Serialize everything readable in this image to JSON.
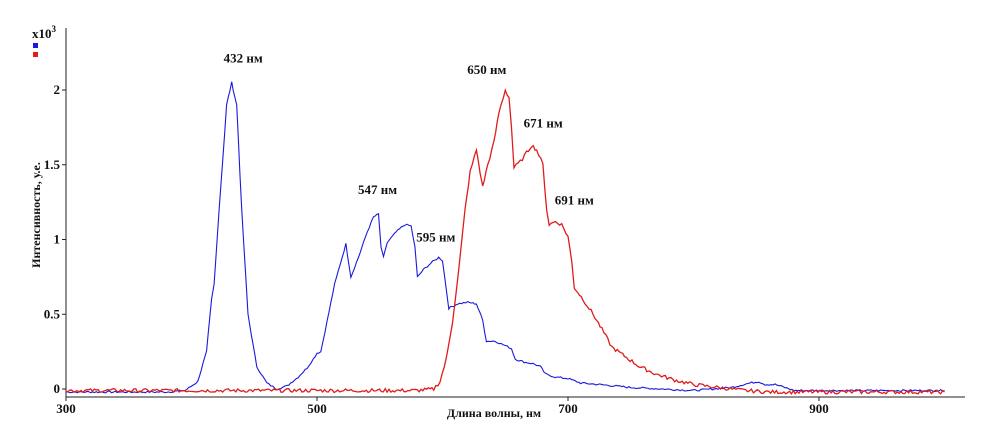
{
  "chart_data": {
    "type": "line",
    "title": "",
    "xlabel": "Длина волны, нм",
    "ylabel": "Интенсивность, у.е.",
    "y_multiplier": "x10",
    "y_multiplier_exp": "3",
    "xlim": [
      300,
      1000
    ],
    "ylim": [
      -0.05,
      2.35
    ],
    "x_ticks": [
      300,
      500,
      700,
      900
    ],
    "y_ticks": [
      0,
      0.5,
      1,
      1.5,
      2
    ],
    "y_tick_labels": [
      "0",
      "0.5",
      "1",
      "1.5",
      "2"
    ],
    "grid": false,
    "legend": "top-left",
    "series": [
      {
        "color": "#1a1adb",
        "points": [
          [
            300,
            -0.02
          ],
          [
            380,
            -0.02
          ],
          [
            395,
            -0.01
          ],
          [
            405,
            0.05
          ],
          [
            412,
            0.25
          ],
          [
            416,
            0.6
          ],
          [
            418,
            0.7
          ],
          [
            422,
            1.2
          ],
          [
            428,
            1.9
          ],
          [
            432,
            2.05
          ],
          [
            436,
            1.9
          ],
          [
            440,
            1.2
          ],
          [
            445,
            0.5
          ],
          [
            452,
            0.15
          ],
          [
            460,
            0.04
          ],
          [
            468,
            0.0
          ],
          [
            476,
            0.02
          ],
          [
            485,
            0.08
          ],
          [
            492,
            0.14
          ],
          [
            497,
            0.2
          ],
          [
            500,
            0.24
          ],
          [
            503,
            0.25
          ],
          [
            508,
            0.45
          ],
          [
            514,
            0.7
          ],
          [
            520,
            0.88
          ],
          [
            523,
            0.97
          ],
          [
            527,
            0.75
          ],
          [
            533,
            0.88
          ],
          [
            540,
            1.05
          ],
          [
            545,
            1.15
          ],
          [
            549,
            1.17
          ],
          [
            551,
            0.95
          ],
          [
            553,
            0.88
          ],
          [
            556,
            0.98
          ],
          [
            563,
            1.05
          ],
          [
            570,
            1.1
          ],
          [
            575,
            1.09
          ],
          [
            578,
            0.95
          ],
          [
            580,
            0.75
          ],
          [
            585,
            0.8
          ],
          [
            592,
            0.85
          ],
          [
            597,
            0.88
          ],
          [
            600,
            0.86
          ],
          [
            605,
            0.54
          ],
          [
            612,
            0.57
          ],
          [
            620,
            0.58
          ],
          [
            627,
            0.57
          ],
          [
            632,
            0.46
          ],
          [
            635,
            0.32
          ],
          [
            642,
            0.32
          ],
          [
            650,
            0.29
          ],
          [
            655,
            0.27
          ],
          [
            658,
            0.2
          ],
          [
            665,
            0.18
          ],
          [
            672,
            0.17
          ],
          [
            678,
            0.15
          ],
          [
            682,
            0.1
          ],
          [
            690,
            0.08
          ],
          [
            700,
            0.07
          ],
          [
            710,
            0.04
          ],
          [
            725,
            0.03
          ],
          [
            750,
            0.01
          ],
          [
            800,
            -0.01
          ],
          [
            830,
            0.01
          ],
          [
            845,
            0.04
          ],
          [
            852,
            0.05
          ],
          [
            857,
            0.03
          ],
          [
            865,
            0.03
          ],
          [
            873,
            0.01
          ],
          [
            880,
            -0.01
          ],
          [
            1000,
            -0.01
          ]
        ]
      },
      {
        "color": "#e01c1c",
        "points": [
          [
            300,
            -0.01
          ],
          [
            500,
            -0.01
          ],
          [
            580,
            -0.01
          ],
          [
            593,
            0.0
          ],
          [
            598,
            0.05
          ],
          [
            603,
            0.2
          ],
          [
            608,
            0.45
          ],
          [
            613,
            0.8
          ],
          [
            618,
            1.2
          ],
          [
            622,
            1.45
          ],
          [
            627,
            1.6
          ],
          [
            630,
            1.45
          ],
          [
            632,
            1.35
          ],
          [
            636,
            1.5
          ],
          [
            641,
            1.65
          ],
          [
            645,
            1.85
          ],
          [
            650,
            2.0
          ],
          [
            653,
            1.95
          ],
          [
            655,
            1.75
          ],
          [
            657,
            1.48
          ],
          [
            662,
            1.52
          ],
          [
            667,
            1.58
          ],
          [
            671,
            1.63
          ],
          [
            675,
            1.6
          ],
          [
            680,
            1.5
          ],
          [
            683,
            1.2
          ],
          [
            685,
            1.1
          ],
          [
            690,
            1.12
          ],
          [
            695,
            1.1
          ],
          [
            700,
            1.02
          ],
          [
            703,
            0.85
          ],
          [
            705,
            0.68
          ],
          [
            712,
            0.6
          ],
          [
            720,
            0.5
          ],
          [
            727,
            0.4
          ],
          [
            735,
            0.28
          ],
          [
            745,
            0.22
          ],
          [
            757,
            0.15
          ],
          [
            770,
            0.1
          ],
          [
            785,
            0.06
          ],
          [
            800,
            0.03
          ],
          [
            820,
            0.01
          ],
          [
            840,
            -0.01
          ],
          [
            860,
            -0.02
          ],
          [
            1000,
            -0.02
          ]
        ]
      }
    ],
    "annotations": [
      {
        "text": "432 нм",
        "x": 432,
        "y": 2.05
      },
      {
        "text": "547 нм",
        "x": 547,
        "y": 1.17
      },
      {
        "text": "595 нм",
        "x": 595,
        "y": 0.88
      },
      {
        "text": "650 нм",
        "x": 650,
        "y": 2.0
      },
      {
        "text": "671 нм",
        "x": 671,
        "y": 1.63
      },
      {
        "text": "691 нм",
        "x": 691,
        "y": 1.12
      }
    ]
  }
}
